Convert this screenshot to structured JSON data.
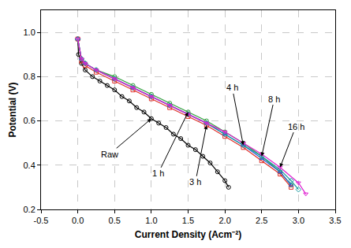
{
  "chart_data": {
    "type": "line",
    "x_label": "Current Density (Acm⁻²)",
    "y_label": "Potential (V)",
    "xlim": [
      -0.5,
      3.5
    ],
    "ylim": [
      0.2,
      1.1
    ],
    "xticks": [
      -0.5,
      {
        "value": 0,
        "label": "0.0"
      },
      0.5,
      {
        "value": 1,
        "label": "1.0"
      },
      1.5,
      {
        "value": 2,
        "label": "2.0"
      },
      2.5,
      {
        "value": 3,
        "label": "3.0"
      },
      3.5
    ],
    "yticks": [
      0.2,
      0.4,
      0.6,
      0.8,
      {
        "value": 1,
        "label": "1.0"
      }
    ],
    "grid": true,
    "series": [
      {
        "name": "Raw",
        "color": "#000000",
        "marker": "circle-open",
        "x": [
          0,
          0.01,
          0.05,
          0.1,
          0.2,
          0.3,
          0.4,
          0.5,
          0.6,
          0.7,
          0.8,
          0.9,
          1.0,
          1.1,
          1.2,
          1.3,
          1.4,
          1.5,
          1.6,
          1.7,
          1.8,
          1.9,
          2.0,
          2.05
        ],
        "values": [
          0.97,
          0.9,
          0.86,
          0.83,
          0.8,
          0.78,
          0.76,
          0.74,
          0.71,
          0.69,
          0.66,
          0.64,
          0.61,
          0.59,
          0.57,
          0.54,
          0.52,
          0.49,
          0.47,
          0.44,
          0.41,
          0.37,
          0.33,
          0.3
        ]
      },
      {
        "name": "1 h",
        "color": "#2e9e3a",
        "marker": "circle-open",
        "x": [
          0,
          0.05,
          0.1,
          0.25,
          0.5,
          0.75,
          1.0,
          1.25,
          1.5,
          1.75,
          2.0,
          2.25,
          2.5,
          2.75,
          2.9
        ],
        "values": [
          0.97,
          0.88,
          0.86,
          0.83,
          0.8,
          0.76,
          0.72,
          0.68,
          0.64,
          0.6,
          0.55,
          0.5,
          0.44,
          0.37,
          0.31
        ]
      },
      {
        "name": "3 h",
        "color": "#e0302a",
        "marker": "square-open",
        "x": [
          0,
          0.05,
          0.1,
          0.25,
          0.5,
          0.75,
          1.0,
          1.25,
          1.5,
          1.75,
          2.0,
          2.25,
          2.5,
          2.75,
          2.9
        ],
        "values": [
          0.97,
          0.87,
          0.85,
          0.82,
          0.78,
          0.74,
          0.7,
          0.66,
          0.62,
          0.58,
          0.53,
          0.48,
          0.42,
          0.36,
          0.3
        ]
      },
      {
        "name": "4 h",
        "color": "#2b5fd9",
        "marker": "triangle-up-open",
        "x": [
          0,
          0.05,
          0.1,
          0.25,
          0.5,
          0.75,
          1.0,
          1.25,
          1.5,
          1.75,
          2.0,
          2.25,
          2.5,
          2.75,
          2.9
        ],
        "values": [
          0.97,
          0.88,
          0.86,
          0.83,
          0.79,
          0.75,
          0.71,
          0.67,
          0.63,
          0.59,
          0.54,
          0.49,
          0.43,
          0.37,
          0.31
        ]
      },
      {
        "name": "8 h",
        "color": "#1a9aa0",
        "marker": "diamond-open",
        "x": [
          0,
          0.05,
          0.1,
          0.25,
          0.5,
          0.75,
          1.0,
          1.25,
          1.5,
          1.75,
          2.0,
          2.25,
          2.5,
          2.75,
          2.9,
          3.0
        ],
        "values": [
          0.97,
          0.88,
          0.86,
          0.83,
          0.79,
          0.75,
          0.71,
          0.67,
          0.63,
          0.59,
          0.54,
          0.49,
          0.44,
          0.38,
          0.33,
          0.29
        ]
      },
      {
        "name": "16 h",
        "color": "#e020d0",
        "marker": "triangle-down-open",
        "x": [
          0,
          0.05,
          0.1,
          0.25,
          0.5,
          0.75,
          1.0,
          1.25,
          1.5,
          1.75,
          2.0,
          2.25,
          2.5,
          2.75,
          3.0,
          3.1
        ],
        "values": [
          0.97,
          0.88,
          0.86,
          0.83,
          0.79,
          0.75,
          0.71,
          0.67,
          0.63,
          0.59,
          0.55,
          0.5,
          0.45,
          0.39,
          0.32,
          0.27
        ]
      }
    ]
  }
}
